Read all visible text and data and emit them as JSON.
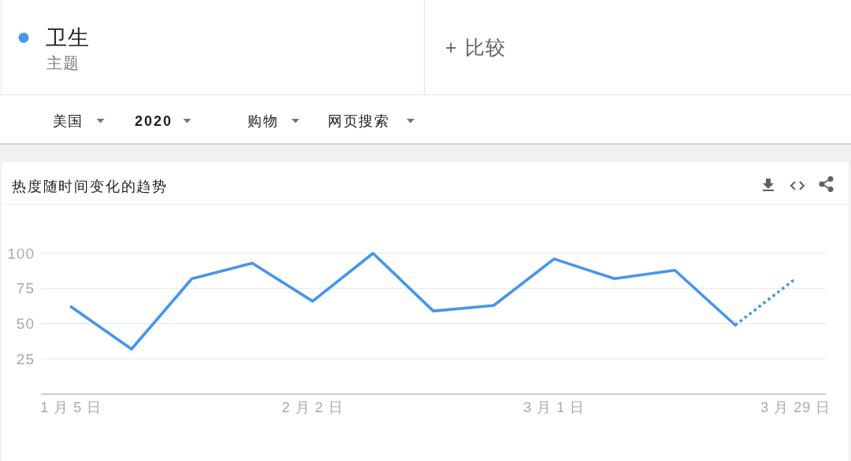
{
  "chart_data": {
    "type": "line",
    "title": "热度随时间变化的趋势",
    "categories": [
      "1 月 5 日",
      null,
      null,
      null,
      "2 月 2 日",
      null,
      null,
      null,
      "3 月 1 日",
      null,
      null,
      null,
      "3 月 29 日"
    ],
    "series": [
      {
        "name": "卫生",
        "color": "#4596ea",
        "values": [
          62,
          32,
          82,
          93,
          66,
          100,
          59,
          63,
          96,
          82,
          88,
          49,
          null
        ]
      },
      {
        "color": "#4596ea",
        "line_style": "dotted",
        "values": [
          null,
          null,
          null,
          null,
          null,
          null,
          null,
          null,
          null,
          null,
          null,
          49,
          82
        ]
      }
    ],
    "ylim": [
      0,
      100
    ],
    "yticks": [
      25,
      50,
      75,
      100
    ],
    "grid": "y",
    "legend": "top left",
    "annotations": [
      "主题",
      "+ 比较",
      "美国",
      "2020",
      "购物",
      "网页搜索"
    ]
  }
}
